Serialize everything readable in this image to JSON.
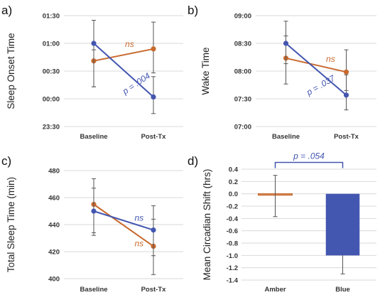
{
  "colors": {
    "blue": "#4356b0",
    "orange": "#c8692d",
    "grid": "#d9d9d9",
    "axis": "#bfbfbf",
    "error": "#555555",
    "bar_edge": "#c8692d"
  },
  "chart_data": [
    {
      "panel": "a)",
      "type": "line",
      "ylabel": "Sleep Onset Time",
      "categories": [
        "Baseline",
        "Post-Tx"
      ],
      "y_ticks": [
        "23:30",
        "00:00",
        "00:30",
        "01:00",
        "01:30"
      ],
      "y_tick_values": [
        -30,
        0,
        30,
        60,
        90
      ],
      "ylim": [
        -30,
        90
      ],
      "grid": true,
      "series": [
        {
          "color": "orange",
          "values": [
            41,
            54
          ],
          "err_low": [
            28,
            26
          ],
          "err_high": [
            12,
            29
          ]
        },
        {
          "color": "blue",
          "values": [
            60,
            2
          ],
          "err_low": [
            47,
            18
          ],
          "err_high": [
            25,
            22
          ]
        }
      ],
      "annotations": [
        {
          "text": "ns",
          "color": "orange",
          "x": 0.55,
          "y": 56,
          "rotate": 0
        },
        {
          "text": "p = .004",
          "color": "blue",
          "x": 0.62,
          "y": 14,
          "rotate": -34
        }
      ]
    },
    {
      "panel": "b)",
      "type": "line",
      "ylabel": "Wake Time",
      "categories": [
        "Baseline",
        "Post-Tx"
      ],
      "y_ticks": [
        "07:00",
        "07:30",
        "08:00",
        "08:30",
        "09:00"
      ],
      "y_tick_values": [
        420,
        450,
        480,
        510,
        540
      ],
      "ylim": [
        420,
        540
      ],
      "grid": true,
      "series": [
        {
          "color": "orange",
          "values": [
            494,
            479
          ],
          "err_low": [
            28,
            20
          ],
          "err_high": [
            24,
            24
          ]
        },
        {
          "color": "blue",
          "values": [
            510,
            454
          ],
          "err_low": [
            22,
            16
          ],
          "err_high": [
            24,
            22
          ]
        }
      ],
      "annotations": [
        {
          "text": "ns",
          "color": "orange",
          "x": 0.62,
          "y": 490,
          "rotate": 0
        },
        {
          "text": "p = .037",
          "color": "blue",
          "x": 0.55,
          "y": 462,
          "rotate": -30
        }
      ]
    },
    {
      "panel": "c)",
      "type": "line",
      "ylabel": "Total Sleep Time (min)",
      "categories": [
        "Baseline",
        "Post-Tx"
      ],
      "y_ticks": [
        "400",
        "420",
        "440",
        "460",
        "480"
      ],
      "y_tick_values": [
        400,
        420,
        440,
        460,
        480
      ],
      "ylim": [
        400,
        480
      ],
      "grid": true,
      "series": [
        {
          "color": "orange",
          "values": [
            455,
            424
          ],
          "err_low": [
            21,
            21
          ],
          "err_high": [
            19,
            20
          ]
        },
        {
          "color": "blue",
          "values": [
            450,
            436
          ],
          "err_low": [
            18,
            19
          ],
          "err_high": [
            17,
            18
          ]
        }
      ],
      "annotations": [
        {
          "text": "ns",
          "color": "blue",
          "x": 0.63,
          "y": 443,
          "rotate": 0
        },
        {
          "text": "ns",
          "color": "orange",
          "x": 0.63,
          "y": 424,
          "rotate": 0
        }
      ]
    },
    {
      "panel": "d)",
      "type": "bar",
      "ylabel": "Mean Circadian Shift (hrs)",
      "categories": [
        "Amber",
        "Blue"
      ],
      "y_ticks": [
        "0.4",
        "0.2",
        "0.0",
        "-0.2",
        "-0.4",
        "-0.6",
        "-0.8",
        "-1.0",
        "-1.2",
        "-1.4"
      ],
      "y_tick_values": [
        0.4,
        0.2,
        0.0,
        -0.2,
        -0.4,
        -0.6,
        -0.8,
        -1.0,
        -1.2,
        -1.4
      ],
      "ylim": [
        -1.4,
        0.4
      ],
      "grid": true,
      "values": [
        -0.02,
        -1.0
      ],
      "bar_colors": [
        "#ffffff",
        "#4356b0"
      ],
      "err_low": [
        0.35,
        0.3
      ],
      "err_high": [
        0.32,
        0.0
      ],
      "bracket": {
        "text": "p = .054",
        "color": "blue",
        "y": 0.51
      }
    }
  ]
}
